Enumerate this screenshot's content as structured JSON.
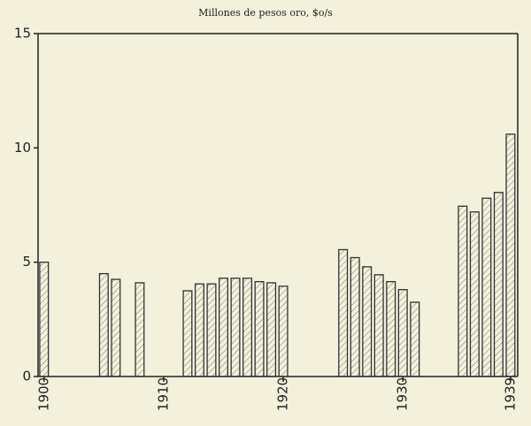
{
  "chart_data": {
    "type": "bar",
    "title": "Millones de pesos oro, $o/s",
    "x": [
      1900,
      1905,
      1906,
      1908,
      1912,
      1913,
      1914,
      1915,
      1916,
      1917,
      1918,
      1919,
      1920,
      1925,
      1926,
      1927,
      1928,
      1929,
      1930,
      1931,
      1935,
      1936,
      1937,
      1938,
      1939
    ],
    "values": [
      5.0,
      4.5,
      4.25,
      4.1,
      3.75,
      4.05,
      4.05,
      4.3,
      4.3,
      4.3,
      4.15,
      4.1,
      3.95,
      5.55,
      5.2,
      4.8,
      4.45,
      4.15,
      3.8,
      3.25,
      7.45,
      7.2,
      7.8,
      8.05,
      10.6
    ],
    "color": "#333333",
    "xlim": [
      1899.5,
      1939.6
    ],
    "xticks": [
      1900,
      1910,
      1920,
      1930,
      1939
    ],
    "ylim": [
      0,
      15
    ],
    "yticks": [
      0,
      5,
      10,
      15
    ]
  }
}
